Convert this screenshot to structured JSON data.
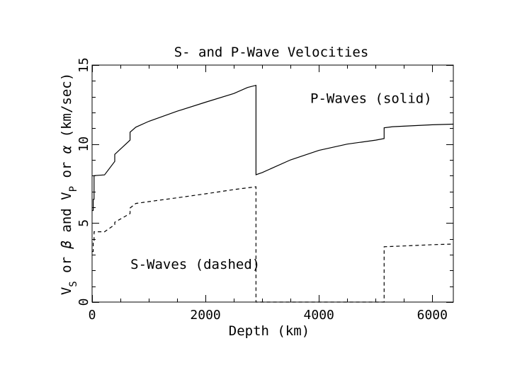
{
  "chart_data": {
    "type": "line",
    "title": "S- and P-Wave Velocities",
    "xlabel": "Depth (km)",
    "ylabel": {
      "vs_main": "V",
      "vs_sub": "S",
      "or1": " or ",
      "beta": "β",
      "and": " and V",
      "vp_sub": "P",
      "or2": " or ",
      "alpha": "α",
      "units": " (km/sec)"
    },
    "xlim": [
      0,
      6371
    ],
    "ylim": [
      0,
      15
    ],
    "xticks": [
      {
        "value": 0,
        "label": "0"
      },
      {
        "value": 2000,
        "label": "2000"
      },
      {
        "value": 4000,
        "label": "4000"
      },
      {
        "value": 6000,
        "label": "6000"
      }
    ],
    "yticks": [
      {
        "value": 0,
        "label": "0"
      },
      {
        "value": 5,
        "label": "5"
      },
      {
        "value": 10,
        "label": "10"
      },
      {
        "value": 15,
        "label": "15"
      }
    ],
    "grid": false,
    "series": [
      {
        "name": "P-Waves (solid)",
        "style": "solid",
        "points": [
          [
            0,
            5.8
          ],
          [
            20,
            5.8
          ],
          [
            20,
            6.5
          ],
          [
            35,
            6.5
          ],
          [
            35,
            8.0
          ],
          [
            220,
            8.05
          ],
          [
            400,
            8.9
          ],
          [
            400,
            9.35
          ],
          [
            670,
            10.25
          ],
          [
            670,
            10.75
          ],
          [
            771,
            11.07
          ],
          [
            1000,
            11.44
          ],
          [
            1500,
            12.08
          ],
          [
            2000,
            12.65
          ],
          [
            2500,
            13.2
          ],
          [
            2741,
            13.58
          ],
          [
            2891,
            13.72
          ],
          [
            2891,
            8.06
          ],
          [
            3000,
            8.2
          ],
          [
            3500,
            9.0
          ],
          [
            4000,
            9.6
          ],
          [
            4500,
            10.0
          ],
          [
            5000,
            10.25
          ],
          [
            5150,
            10.35
          ],
          [
            5150,
            11.03
          ],
          [
            5300,
            11.1
          ],
          [
            6000,
            11.22
          ],
          [
            6371,
            11.26
          ]
        ]
      },
      {
        "name": "S-Waves (dashed)",
        "style": "dashed",
        "points": [
          [
            0,
            3.2
          ],
          [
            20,
            3.2
          ],
          [
            20,
            3.9
          ],
          [
            35,
            3.9
          ],
          [
            35,
            4.45
          ],
          [
            220,
            4.45
          ],
          [
            400,
            4.9
          ],
          [
            400,
            5.05
          ],
          [
            670,
            5.6
          ],
          [
            670,
            5.95
          ],
          [
            771,
            6.24
          ],
          [
            1000,
            6.36
          ],
          [
            1500,
            6.6
          ],
          [
            2000,
            6.85
          ],
          [
            2500,
            7.12
          ],
          [
            2891,
            7.3
          ],
          [
            2891,
            0
          ],
          [
            5150,
            0
          ],
          [
            5150,
            3.5
          ],
          [
            5500,
            3.55
          ],
          [
            6000,
            3.63
          ],
          [
            6371,
            3.67
          ]
        ]
      }
    ],
    "annotations": [
      {
        "text": "P-Waves (solid)",
        "x": 4920,
        "y": 12.6,
        "anchor": "middle"
      },
      {
        "text": "S-Waves (dashed)",
        "x": 1820,
        "y": 2.1,
        "anchor": "middle"
      }
    ]
  }
}
